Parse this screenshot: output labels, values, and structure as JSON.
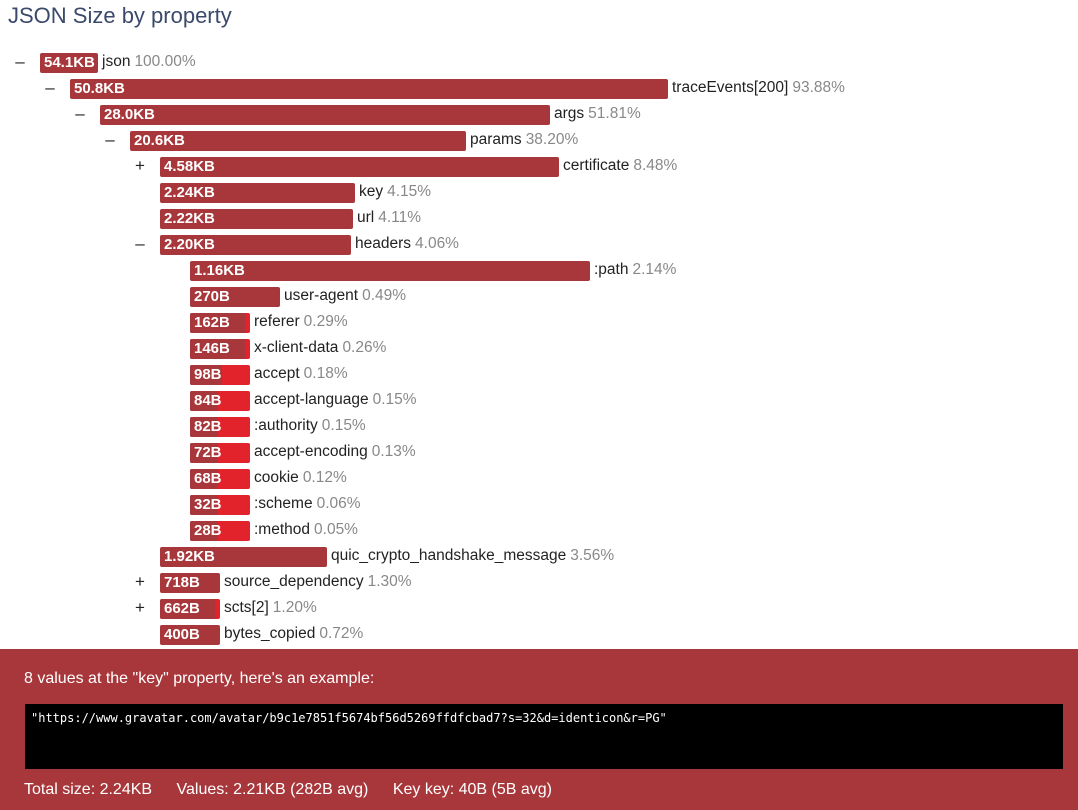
{
  "title": "JSON Size by property",
  "tree": [
    {
      "toggle": "–",
      "size": "54.1KB",
      "name": "json",
      "pct": "100.00%",
      "fraction": 1.0
    },
    {
      "toggle": "–",
      "size": "50.8KB",
      "name": "traceEvents[200]",
      "pct": "93.88%",
      "fraction": 0.9388
    },
    {
      "toggle": "–",
      "size": "28.0KB",
      "name": "args",
      "pct": "51.81%",
      "fraction": 0.5181
    },
    {
      "toggle": "–",
      "size": "20.6KB",
      "name": "params",
      "pct": "38.20%",
      "fraction": 0.382
    },
    {
      "toggle": "+",
      "size": "4.58KB",
      "name": "certificate",
      "pct": "8.48%",
      "fraction": 0.0848
    },
    {
      "toggle": "",
      "size": "2.24KB",
      "name": "key",
      "pct": "4.15%",
      "fraction": 0.0415
    },
    {
      "toggle": "",
      "size": "2.22KB",
      "name": "url",
      "pct": "4.11%",
      "fraction": 0.0411
    },
    {
      "toggle": "–",
      "size": "2.20KB",
      "name": "headers",
      "pct": "4.06%",
      "fraction": 0.0406
    },
    {
      "toggle": "",
      "size": "1.16KB",
      "name": ":path",
      "pct": "2.14%",
      "fraction": 0.0214
    },
    {
      "toggle": "",
      "size": "270B",
      "name": "user-agent",
      "pct": "0.49%",
      "fraction": 0.0049
    },
    {
      "toggle": "",
      "size": "162B",
      "name": "referer",
      "pct": "0.29%",
      "fraction": 0.0029
    },
    {
      "toggle": "",
      "size": "146B",
      "name": "x-client-data",
      "pct": "0.26%",
      "fraction": 0.0026
    },
    {
      "toggle": "",
      "size": "98B",
      "name": "accept",
      "pct": "0.18%",
      "fraction": 0.0018
    },
    {
      "toggle": "",
      "size": "84B",
      "name": "accept-language",
      "pct": "0.15%",
      "fraction": 0.0015
    },
    {
      "toggle": "",
      "size": "82B",
      "name": ":authority",
      "pct": "0.15%",
      "fraction": 0.0015
    },
    {
      "toggle": "",
      "size": "72B",
      "name": "accept-encoding",
      "pct": "0.13%",
      "fraction": 0.0013
    },
    {
      "toggle": "",
      "size": "68B",
      "name": "cookie",
      "pct": "0.12%",
      "fraction": 0.0012
    },
    {
      "toggle": "",
      "size": "32B",
      "name": ":scheme",
      "pct": "0.06%",
      "fraction": 0.0006
    },
    {
      "toggle": "",
      "size": "28B",
      "name": ":method",
      "pct": "0.05%",
      "fraction": 0.0005
    },
    {
      "toggle": "",
      "size": "1.92KB",
      "name": "quic_crypto_handshake_message",
      "pct": "3.56%",
      "fraction": 0.0356
    },
    {
      "toggle": "+",
      "size": "718B",
      "name": "source_dependency",
      "pct": "1.30%",
      "fraction": 0.013
    },
    {
      "toggle": "+",
      "size": "662B",
      "name": "scts[2]",
      "pct": "1.20%",
      "fraction": 0.012
    },
    {
      "toggle": "",
      "size": "400B",
      "name": "bytes_copied",
      "pct": "0.72%",
      "fraction": 0.0072
    }
  ],
  "panel": {
    "message": "8 values at the \"key\" property, here's an example:",
    "example": "\"https://www.gravatar.com/avatar/b9c1e7851f5674bf56d5269ffdfcbad7?s=32&d=identicon&r=PG\"",
    "total": "Total size: 2.24KB",
    "values": "Values: 2.21KB (282B avg)",
    "key": "Key key: 40B (5B avg)"
  },
  "colors": {
    "bar": "#a8373b",
    "bar_small": "#e3232b",
    "title": "#3b4a6b"
  }
}
